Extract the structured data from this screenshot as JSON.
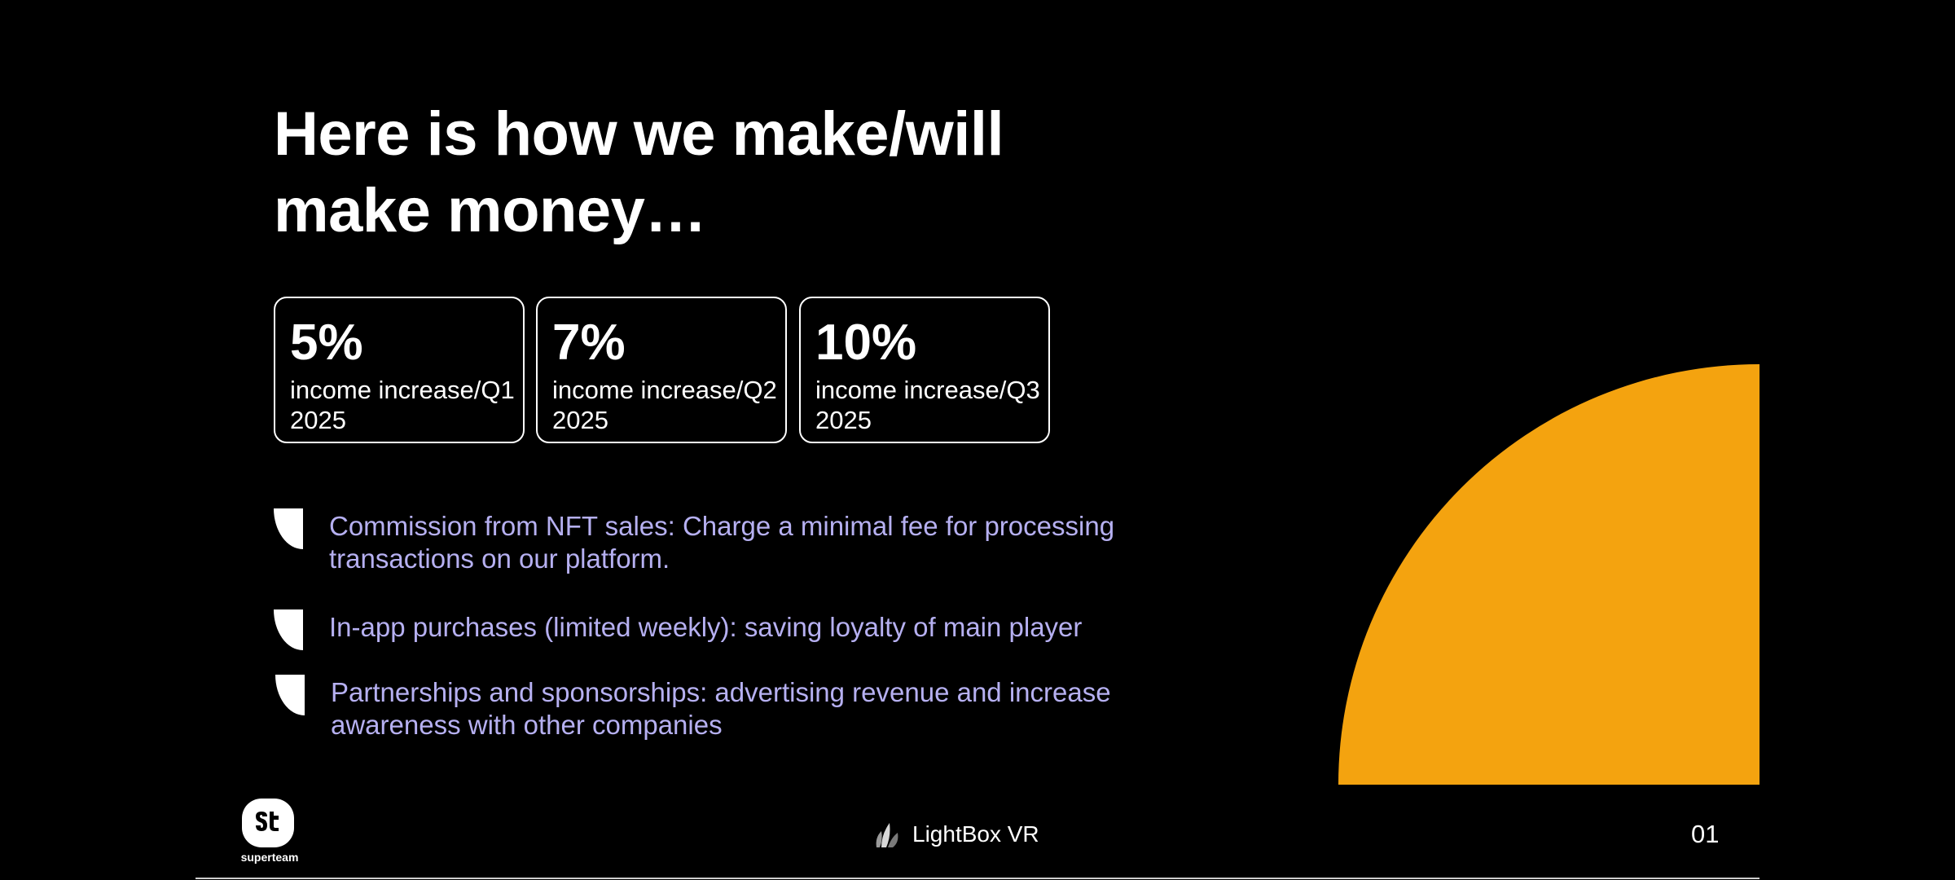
{
  "slide": {
    "title": "Here is how we make/will make money…",
    "stats": [
      {
        "value": "5%",
        "description": "income increase/Q1 2025"
      },
      {
        "value": "7%",
        "description": "income increase/Q2 2025"
      },
      {
        "value": "10%",
        "description": "income increase/Q3 2025"
      }
    ],
    "bullets": [
      {
        "text": "Commission from NFT sales: Charge a minimal fee for processing transactions on our platform."
      },
      {
        "text": "In-app purchases (limited weekly): saving loyalty of main player"
      },
      {
        "text": "Partnerships and sponsorships: advertising revenue and increase awareness with other companies"
      }
    ],
    "bullet_icon": "quarter-circle-bullet-icon",
    "decoration": {
      "shape": "quarter-circle",
      "color": "#f4a30f"
    }
  },
  "footer": {
    "logo_text": "superteam",
    "logo_icon": "superteam-logo-icon",
    "brand_name": "LightBox VR",
    "brand_icon": "lightbox-vr-logo-icon",
    "page_number": "01"
  },
  "colors": {
    "background": "#000000",
    "text": "#ffffff",
    "bullet_text": "#b6b0f1",
    "accent": "#f4a30f"
  }
}
